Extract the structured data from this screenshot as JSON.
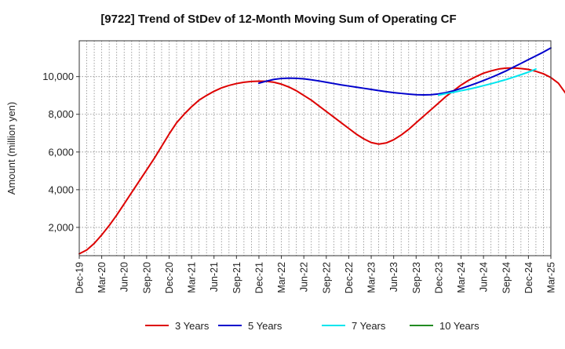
{
  "chart_data": {
    "type": "line",
    "title": "[9722]  Trend of StDev of 12-Month Moving Sum of Operating CF",
    "xlabel": "",
    "ylabel": "Amount (million yen)",
    "ylim": [
      500,
      11900
    ],
    "y_ticks": [
      2000,
      4000,
      6000,
      8000,
      10000
    ],
    "y_tick_labels": [
      "2,000",
      "4,000",
      "6,000",
      "8,000",
      "10,000"
    ],
    "x_tick_labels": [
      "Dec-19",
      "Mar-20",
      "Jun-20",
      "Sep-20",
      "Dec-20",
      "Mar-21",
      "Jun-21",
      "Sep-21",
      "Dec-21",
      "Mar-22",
      "Jun-22",
      "Sep-22",
      "Dec-22",
      "Mar-23",
      "Jun-23",
      "Sep-23",
      "Dec-23",
      "Mar-24",
      "Jun-24",
      "Sep-24",
      "Dec-24",
      "Mar-25"
    ],
    "x_minor_per_major": 3,
    "grid": true,
    "legend_position": "bottom",
    "series": [
      {
        "name": "3 Years",
        "color": "#dd0000",
        "start_index": 0,
        "values": [
          600,
          800,
          1150,
          1600,
          2100,
          2650,
          3250,
          3850,
          4450,
          5050,
          5650,
          6300,
          6950,
          7550,
          8000,
          8400,
          8750,
          9000,
          9220,
          9400,
          9530,
          9630,
          9700,
          9740,
          9760,
          9750,
          9700,
          9600,
          9450,
          9250,
          9000,
          8750,
          8450,
          8150,
          7850,
          7550,
          7250,
          6950,
          6700,
          6500,
          6420,
          6480,
          6650,
          6900,
          7200,
          7550,
          7900,
          8250,
          8600,
          8950,
          9250,
          9550,
          9800,
          10000,
          10180,
          10300,
          10400,
          10450,
          10460,
          10430,
          10380,
          10280,
          10150,
          9950,
          9650,
          9100
        ]
      },
      {
        "name": "5 Years",
        "color": "#0000cc",
        "start_index": 24,
        "values": [
          9650,
          9760,
          9850,
          9900,
          9920,
          9910,
          9880,
          9830,
          9770,
          9700,
          9630,
          9560,
          9500,
          9440,
          9380,
          9320,
          9260,
          9200,
          9150,
          9110,
          9070,
          9040,
          9030,
          9040,
          9080,
          9150,
          9250,
          9370,
          9500,
          9640,
          9790,
          9950,
          10120,
          10300,
          10500,
          10700,
          10900,
          11100,
          11300,
          11520
        ]
      },
      {
        "name": "7 Years",
        "color": "#00e5ee",
        "start_index": 48,
        "values": [
          9020,
          9100,
          9170,
          9250,
          9330,
          9420,
          9520,
          9620,
          9730,
          9840,
          9970,
          10100,
          10240,
          10400
        ]
      },
      {
        "name": "10 Years",
        "color": "#228b22",
        "start_index": 0,
        "values": []
      }
    ]
  }
}
